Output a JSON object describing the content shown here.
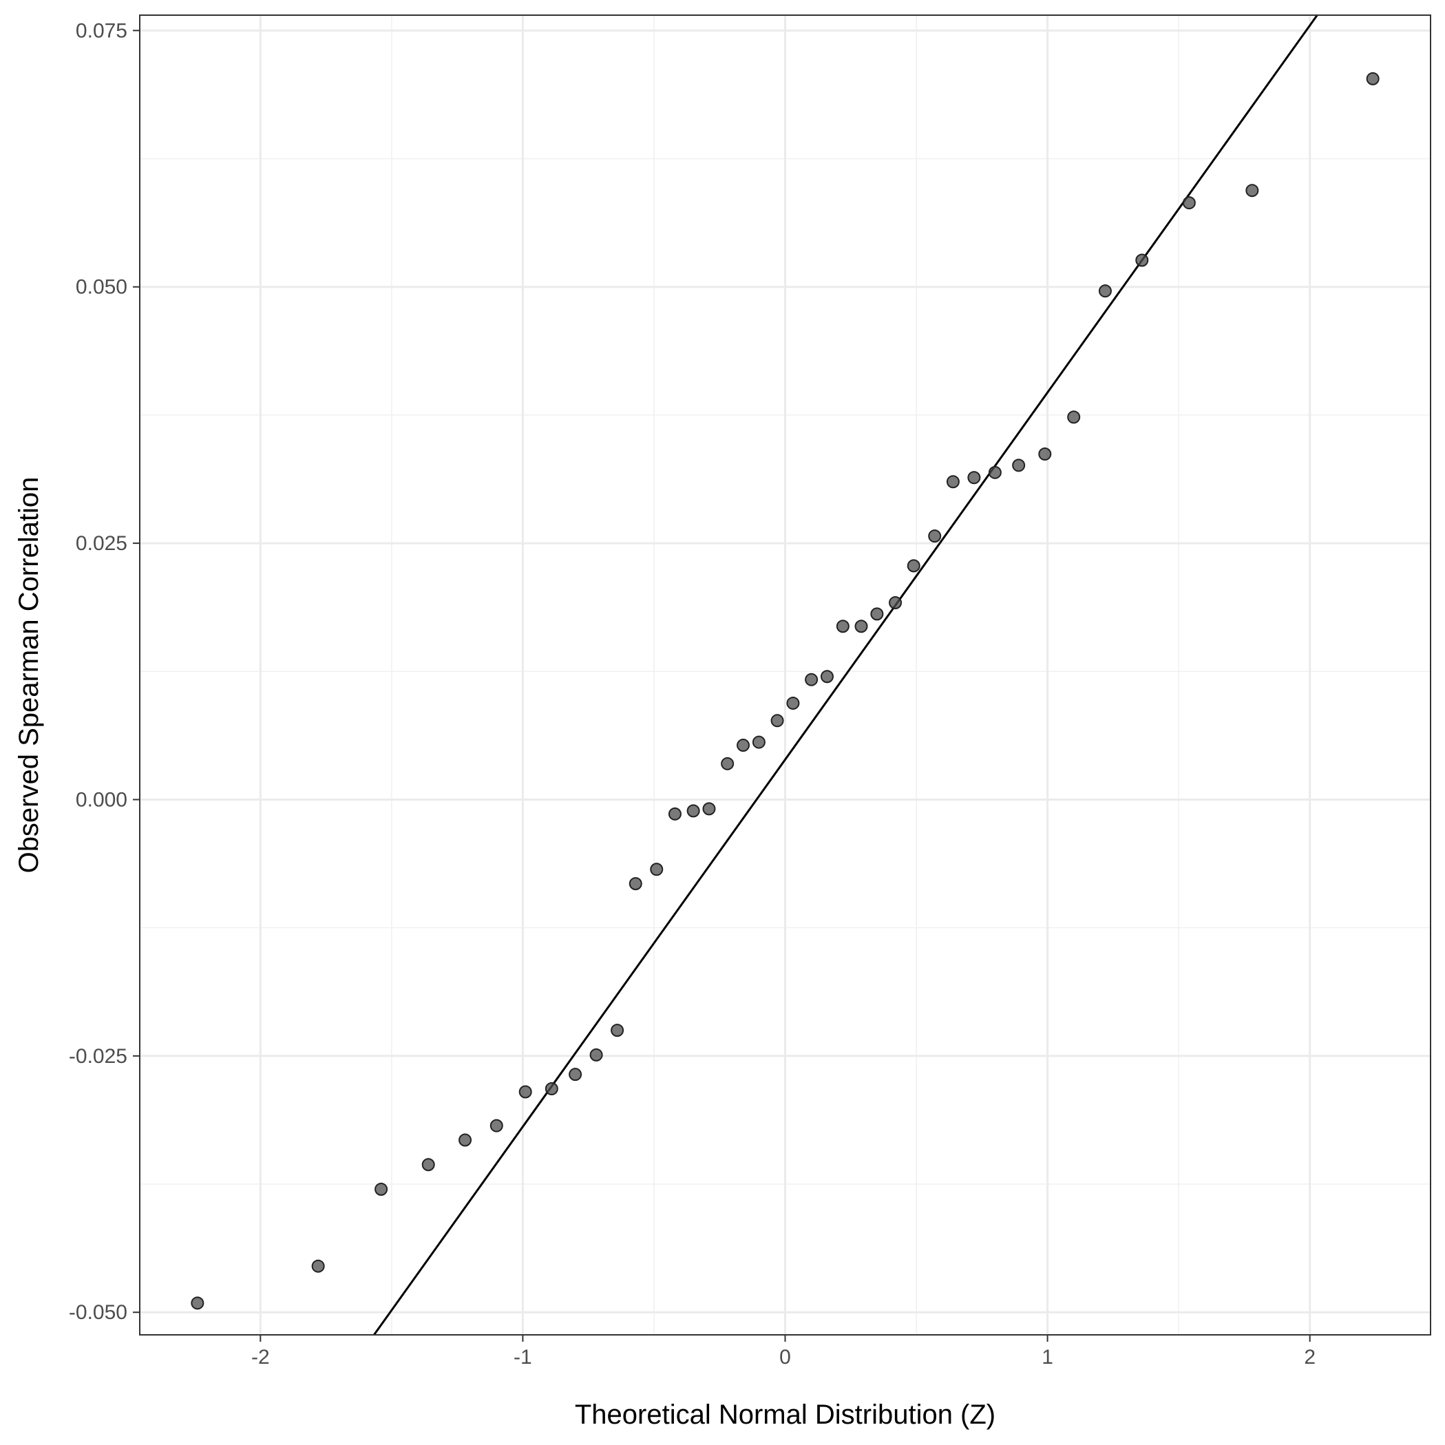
{
  "chart_data": {
    "type": "scatter",
    "title": "",
    "xlabel": "Theoretical Normal Distribution (Z)",
    "ylabel": "Observed Spearman Correlation",
    "xlim": [
      -2.46,
      2.46
    ],
    "ylim": [
      -0.0522,
      0.0765
    ],
    "x_ticks": [
      -2,
      -1,
      0,
      1,
      2
    ],
    "x_tick_labels": [
      "-2",
      "-1",
      "0",
      "1",
      "2"
    ],
    "y_ticks": [
      -0.05,
      -0.025,
      0.0,
      0.025,
      0.05,
      0.075
    ],
    "y_tick_labels": [
      "-0.050",
      "-0.025",
      "0.000",
      "0.025",
      "0.050",
      "0.075"
    ],
    "grid": true,
    "reference_line": {
      "intercept": 0.0039,
      "slope": 0.0358
    },
    "point_color": "#4d4d4d",
    "series": [
      {
        "points": [
          [
            -2.24,
            -0.0491
          ],
          [
            -1.78,
            -0.0455
          ],
          [
            -1.54,
            -0.038
          ],
          [
            -1.36,
            -0.0356
          ],
          [
            -1.22,
            -0.0332
          ],
          [
            -1.1,
            -0.0318
          ],
          [
            -0.99,
            -0.0285
          ],
          [
            -0.89,
            -0.0282
          ],
          [
            -0.8,
            -0.0268
          ],
          [
            -0.72,
            -0.0249
          ],
          [
            -0.64,
            -0.0225
          ],
          [
            -0.57,
            -0.0082
          ],
          [
            -0.49,
            -0.0068
          ],
          [
            -0.42,
            -0.0014
          ],
          [
            -0.35,
            -0.0011
          ],
          [
            -0.29,
            -0.0009
          ],
          [
            -0.22,
            0.0035
          ],
          [
            -0.16,
            0.0053
          ],
          [
            -0.1,
            0.0056
          ],
          [
            -0.03,
            0.0077
          ],
          [
            0.03,
            0.0094
          ],
          [
            0.1,
            0.0117
          ],
          [
            0.16,
            0.012
          ],
          [
            0.22,
            0.0169
          ],
          [
            0.29,
            0.0169
          ],
          [
            0.35,
            0.0181
          ],
          [
            0.42,
            0.0192
          ],
          [
            0.49,
            0.0228
          ],
          [
            0.57,
            0.0257
          ],
          [
            0.64,
            0.031
          ],
          [
            0.72,
            0.0314
          ],
          [
            0.8,
            0.0319
          ],
          [
            0.89,
            0.0326
          ],
          [
            0.99,
            0.0337
          ],
          [
            1.1,
            0.0373
          ],
          [
            1.22,
            0.0496
          ],
          [
            1.36,
            0.0526
          ],
          [
            1.54,
            0.0582
          ],
          [
            1.78,
            0.0594
          ],
          [
            2.24,
            0.0703
          ]
        ]
      }
    ]
  }
}
